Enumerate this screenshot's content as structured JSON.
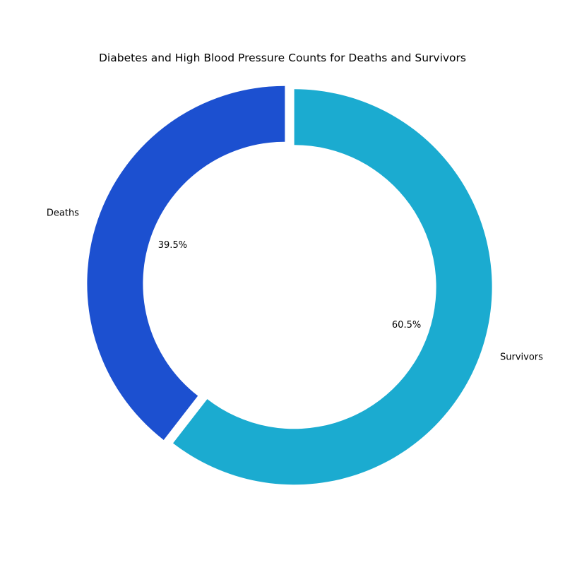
{
  "chart_data": {
    "type": "pie",
    "style": "donut",
    "title": "Diabetes and High Blood Pressure Counts for Deaths and Survivors",
    "categories": [
      "Deaths",
      "Survivors"
    ],
    "values": [
      39.5,
      60.5
    ],
    "value_labels": [
      "39.5%",
      "60.5%"
    ],
    "colors": [
      "#1c50d0",
      "#1babd0"
    ],
    "start_angle_deg": 90,
    "direction": "counterclockwise",
    "exploded": true,
    "legend": "none"
  }
}
